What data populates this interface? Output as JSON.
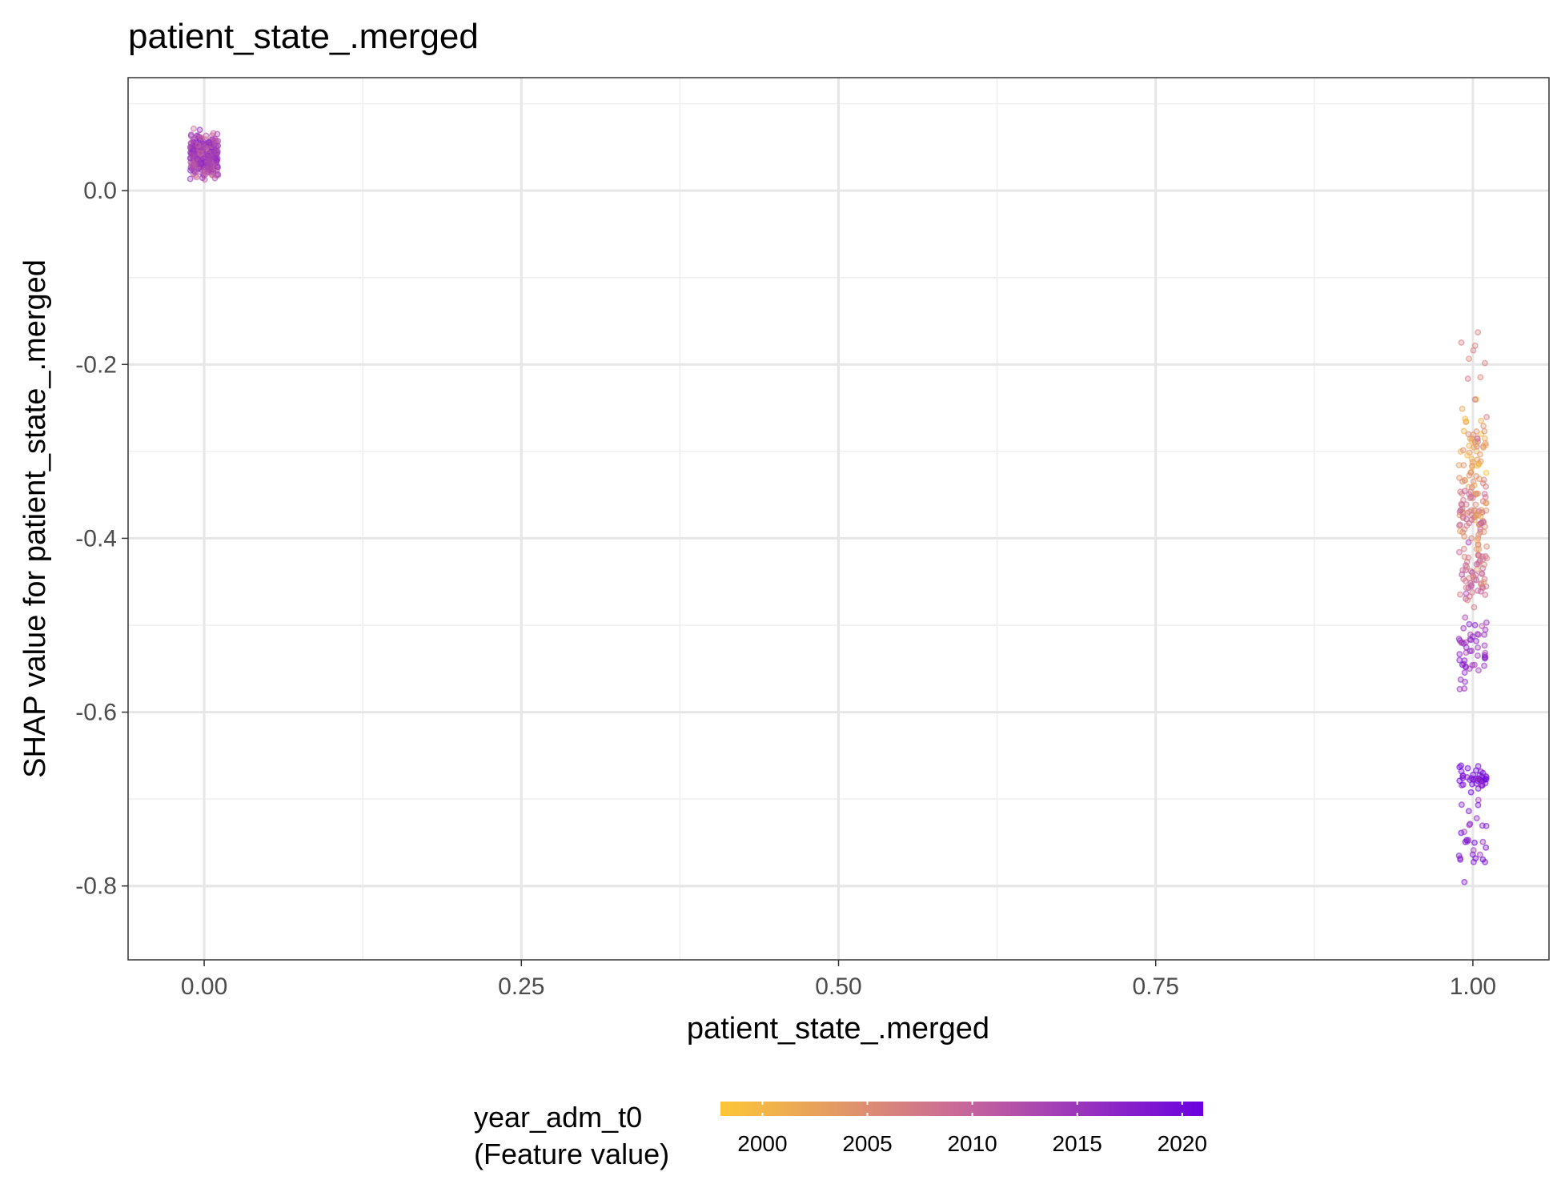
{
  "chart_data": {
    "type": "scatter",
    "title": "patient_state_.merged",
    "xlabel": "patient_state_.merged",
    "ylabel": "SHAP value for patient_state_.merged",
    "xlim": [
      -0.06,
      1.06
    ],
    "ylim": [
      -0.885,
      0.13
    ],
    "x_ticks": [
      "0.00",
      "0.25",
      "0.50",
      "0.75",
      "1.00"
    ],
    "x_tick_values": [
      0,
      0.25,
      0.5,
      0.75,
      1.0
    ],
    "y_ticks": [
      "0.0",
      "-0.2",
      "-0.4",
      "-0.6",
      "-0.8"
    ],
    "y_tick_values": [
      0.0,
      -0.2,
      -0.4,
      -0.6,
      -0.8
    ],
    "grid": true,
    "legend": {
      "title_line1": "year_adm_t0",
      "title_line2": "(Feature value)",
      "placement": "bottom",
      "color_low": "#FCC735",
      "color_mid": "#C8689A",
      "color_high": "#6A00E0",
      "range": [
        1998,
        2021
      ],
      "ticks": [
        "2000",
        "2005",
        "2010",
        "2015",
        "2020"
      ],
      "tick_values": [
        2000,
        2005,
        2010,
        2015,
        2020
      ]
    },
    "clusters": [
      {
        "x": 0,
        "y_center": 0.04,
        "y_spread": 0.022,
        "year_mean": 2013,
        "count": 300
      },
      {
        "x": 1,
        "y_center": -0.3,
        "y_spread": 0.04,
        "year_mean": 2003,
        "count": 60
      },
      {
        "x": 1,
        "y_center": -0.37,
        "y_spread": 0.03,
        "year_mean": 2006,
        "count": 80
      },
      {
        "x": 1,
        "y_center": -0.44,
        "y_spread": 0.035,
        "year_mean": 2009,
        "count": 60
      },
      {
        "x": 1,
        "y_center": -0.53,
        "y_spread": 0.04,
        "year_mean": 2015,
        "count": 50
      },
      {
        "x": 1,
        "y_center": -0.675,
        "y_spread": 0.012,
        "year_mean": 2020,
        "count": 40
      },
      {
        "x": 1,
        "y_center": -0.74,
        "y_spread": 0.05,
        "year_mean": 2019,
        "count": 30
      },
      {
        "x": 1,
        "y_center": -0.2,
        "y_spread": 0.05,
        "year_mean": 2006,
        "count": 10
      }
    ]
  }
}
